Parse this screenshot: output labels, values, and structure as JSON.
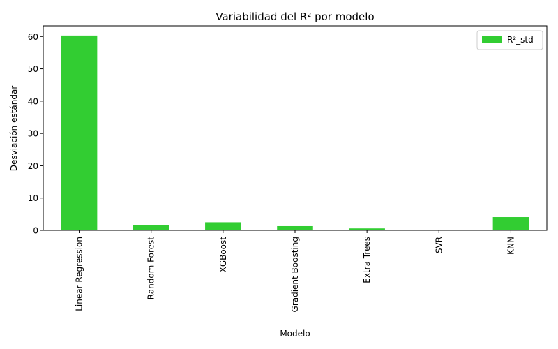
{
  "chart_data": {
    "type": "bar",
    "title": "Variabilidad del R² por modelo",
    "xlabel": "Modelo",
    "ylabel": "Desviación estándar",
    "categories": [
      "Linear Regression",
      "Random Forest",
      "XGBoost",
      "Gradient Boosting",
      "Extra Trees",
      "SVR",
      "KNN"
    ],
    "series": [
      {
        "name": "R²_std",
        "values": [
          60.3,
          1.7,
          2.5,
          1.3,
          0.6,
          0.05,
          4.1
        ]
      }
    ],
    "ylim": [
      0,
      63.3
    ],
    "yticks": [
      0,
      10,
      20,
      30,
      40,
      50,
      60
    ],
    "grid": false,
    "legend_position": "top-right",
    "colors": {
      "bar": "#32cd32"
    }
  }
}
